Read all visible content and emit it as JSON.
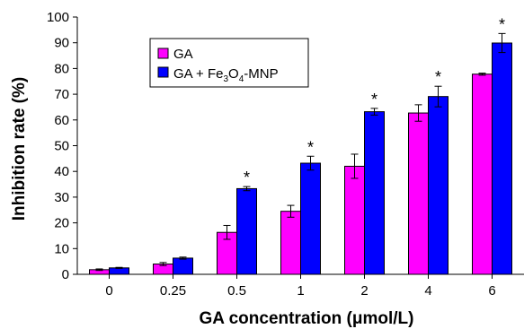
{
  "chart_data": {
    "type": "bar",
    "xlabel": "GA concentration (μmol/L)",
    "ylabel": "Inhibition rate (%)",
    "ylim": [
      0,
      100
    ],
    "yticks": [
      0,
      10,
      20,
      30,
      40,
      50,
      60,
      70,
      80,
      90,
      100
    ],
    "categories": [
      "0",
      "0.25",
      "0.5",
      "1",
      "2",
      "4",
      "6"
    ],
    "legend_position": "top-left",
    "series": [
      {
        "name": "GA",
        "color": "#ff00ff",
        "values": [
          1.8,
          4.0,
          16.3,
          24.5,
          42.0,
          62.7,
          77.8
        ],
        "errors": [
          0.3,
          0.6,
          2.7,
          2.3,
          4.7,
          3.2,
          0.4
        ]
      },
      {
        "name": "GA + Fe3O4-MNP",
        "label_parts": [
          "GA + Fe",
          "3",
          "O",
          "4",
          "-MNP"
        ],
        "color": "#0000ff",
        "values": [
          2.5,
          6.3,
          33.3,
          43.2,
          63.2,
          69.1,
          89.9
        ],
        "errors": [
          0.2,
          0.4,
          0.8,
          2.7,
          1.3,
          4.0,
          3.7
        ]
      }
    ],
    "significance_marker": "*",
    "significant": [
      false,
      false,
      true,
      true,
      true,
      true,
      true
    ]
  }
}
